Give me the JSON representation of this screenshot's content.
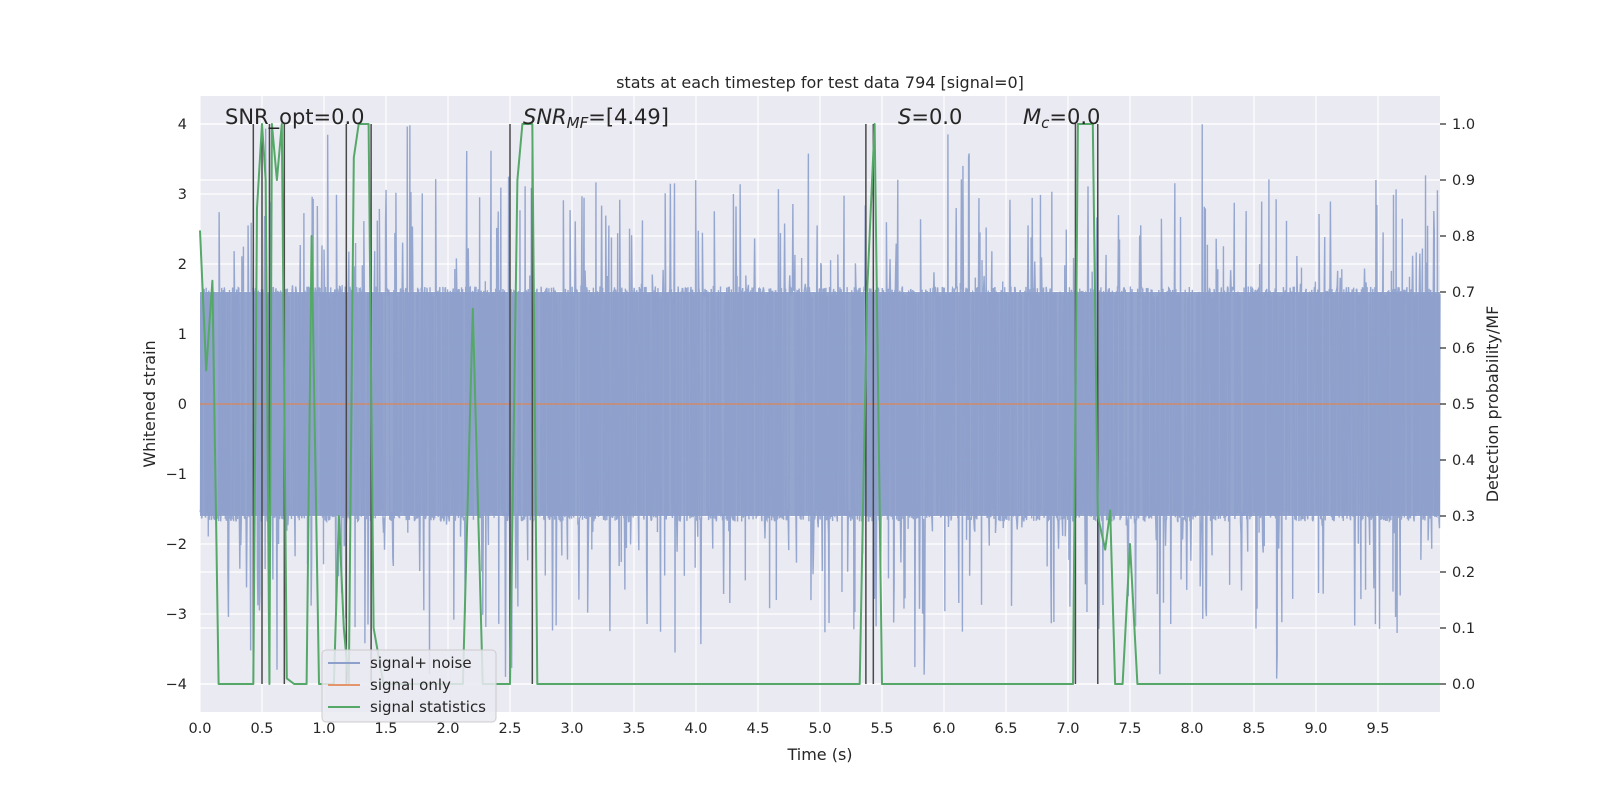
{
  "chart_data": {
    "type": "line",
    "title": "stats at each timestep for test data 794 [signal=0]",
    "xlabel": "Time (s)",
    "ylabel": "Whitened strain",
    "ylabel_right": "Detection probability/MF",
    "xlim": [
      0,
      10
    ],
    "ylim": [
      -4.4,
      4.4
    ],
    "ylim_right": [
      -0.05,
      1.05
    ],
    "x_ticks": [
      0.0,
      0.5,
      1.0,
      1.5,
      2.0,
      2.5,
      3.0,
      3.5,
      4.0,
      4.5,
      5.0,
      5.5,
      6.0,
      6.5,
      7.0,
      7.5,
      8.0,
      8.5,
      9.0,
      9.5
    ],
    "y_ticks": [
      4,
      3,
      2,
      1,
      0,
      -1,
      -2,
      -3,
      -4
    ],
    "y_tick_labels": [
      "4",
      "3",
      "2",
      "1",
      "0",
      "−1",
      "−2",
      "−3",
      "−4"
    ],
    "y_right_ticks": [
      1.0,
      0.9,
      0.8,
      0.7,
      0.6,
      0.5,
      0.4,
      0.3,
      0.2,
      0.1,
      0.0
    ],
    "grid": true,
    "legend": {
      "placement": "lower-left",
      "entries": [
        {
          "label": "signal+ noise",
          "color": "#8da0cb"
        },
        {
          "label": "signal only",
          "color": "#e5956b"
        },
        {
          "label": "signal statistics",
          "color": "#55a868"
        }
      ]
    },
    "annotations": {
      "snr_opt": "SNR_opt=0.0",
      "snr_mf_sym": "SNR",
      "snr_mf_sub": "MF",
      "snr_mf_val": "=[4.49]",
      "s_sym": "S",
      "s_val": "=0.0",
      "mc_sym": "M",
      "mc_sub": "c",
      "mc_val": "=0.0"
    },
    "noise_series": {
      "name": "signal+ noise",
      "color": "#8da0cb",
      "description": "dense whitened strain noise, 0 to 10 s",
      "typical_amplitude": 1.6,
      "peak_amplitude": 4.0
    },
    "signal_only": {
      "name": "signal only",
      "color": "#dd8452",
      "value": 0
    },
    "statistics_series": {
      "name": "signal statistics",
      "color": "#55a868",
      "x": [
        0.0,
        0.05,
        0.1,
        0.15,
        0.18,
        0.43,
        0.46,
        0.5,
        0.53,
        0.56,
        0.58,
        0.62,
        0.66,
        0.7,
        0.76,
        0.86,
        0.9,
        0.96,
        1.0,
        1.08,
        1.12,
        1.16,
        1.2,
        1.24,
        1.28,
        1.32,
        1.36,
        1.4,
        1.48,
        1.52,
        1.6,
        1.65,
        1.7,
        2.12,
        2.2,
        2.28,
        2.45,
        2.5,
        2.56,
        2.6,
        2.64,
        2.68,
        2.72,
        2.76,
        2.82,
        5.32,
        5.38,
        5.44,
        5.5,
        5.56,
        7.04,
        7.08,
        7.2,
        7.24,
        7.3,
        7.34,
        7.38,
        7.44,
        7.5,
        7.56,
        7.62,
        10.0
      ],
      "y": [
        0.81,
        0.56,
        0.72,
        0.0,
        0.0,
        0.0,
        0.85,
        1.0,
        0.9,
        0.0,
        1.0,
        0.9,
        1.0,
        0.01,
        0.0,
        0.0,
        0.8,
        0.0,
        0.0,
        0.0,
        0.3,
        0.1,
        0.0,
        0.94,
        1.0,
        1.0,
        1.0,
        0.1,
        0.0,
        0.0,
        0.0,
        0.0,
        0.0,
        0.0,
        0.67,
        0.0,
        0.0,
        0.0,
        0.9,
        1.0,
        1.0,
        1.0,
        0.0,
        0.0,
        0.0,
        0.0,
        0.7,
        1.0,
        0.0,
        0.0,
        0.0,
        1.0,
        1.0,
        0.3,
        0.24,
        0.31,
        0.0,
        0.0,
        0.25,
        0.0,
        0.0,
        0.0
      ]
    },
    "marker_lines_x": [
      0.43,
      0.5,
      0.56,
      0.68,
      1.18,
      1.38,
      2.5,
      2.68,
      5.37,
      5.43,
      7.06,
      7.24
    ]
  }
}
